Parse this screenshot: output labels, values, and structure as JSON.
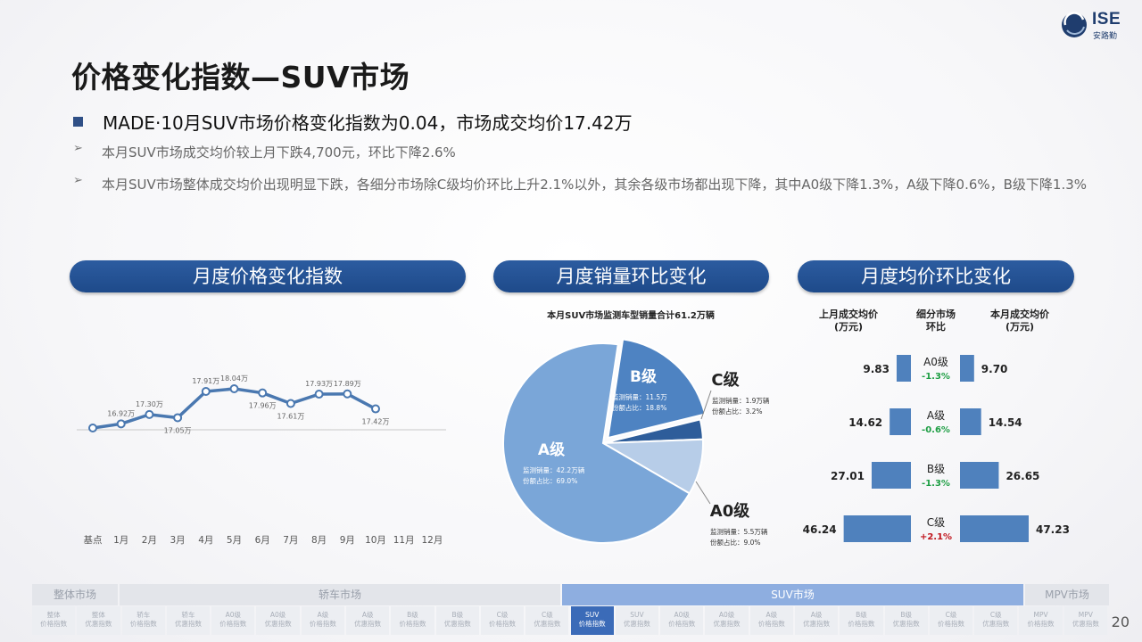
{
  "logo": {
    "text": "ISE",
    "subtext": "安路勤"
  },
  "title": "价格变化指数—SUV市场",
  "bullet": "MADE·10月SUV市场价格变化指数为0.04，市场成交均价17.42万",
  "sub1": "本月SUV市场成交均价较上月下跌4,700元，环比下降2.6%",
  "sub2": "本月SUV市场整体成交均价出现明显下跌，各细分市场除C级均价环比上升2.1%以外，其余各级市场都出现下降，其中A0级下降1.3%，A级下降0.6%，B级下降1.3%",
  "panels": {
    "p1": "月度价格变化指数",
    "p2": "月度销量环比变化",
    "p3": "月度均价环比变化"
  },
  "chart_data": [
    {
      "type": "line",
      "categories": [
        "基点",
        "1月",
        "2月",
        "3月",
        "4月",
        "5月",
        "6月",
        "7月",
        "8月",
        "9月",
        "10月",
        "11月",
        "12月"
      ],
      "values": [
        16.3,
        16.47,
        16.85,
        16.72,
        17.79,
        17.9,
        17.73,
        17.3,
        17.68,
        17.69,
        17.08,
        null,
        null
      ],
      "data_labels": [
        "",
        "16.92万",
        "17.30万",
        "17.05万",
        "17.91万",
        "18.04万",
        "17.96万",
        "17.61万",
        "17.93万",
        "17.89万",
        "17.42万",
        "",
        ""
      ],
      "color": "#4a78b0"
    },
    {
      "type": "pie",
      "title": "本月SUV市场监测车型销量合计61.2万辆",
      "slices": [
        {
          "name": "A级",
          "sales": "监测销量：42.2万辆",
          "share_text": "份额占比：69.0%",
          "value": 69.0,
          "color": "#7aa6d8"
        },
        {
          "name": "B级",
          "sales": "监测销量：11.5万",
          "share_text": "份额占比：18.8%",
          "value": 18.8,
          "color": "#4e83c2"
        },
        {
          "name": "C级",
          "sales": "监测销量：1.9万辆",
          "share_text": "份额占比：3.2%",
          "value": 3.2,
          "color": "#2e5d9a"
        },
        {
          "name": "A0级",
          "sales": "监测销量：5.5万辆",
          "share_text": "份额占比：9.0%",
          "value": 9.0,
          "color": "#b7cde8"
        }
      ]
    },
    {
      "type": "bar",
      "headers": {
        "left": "上月成交均价\n(万元)",
        "mid": "细分市场\n环比",
        "right": "本月成交均价\n(万元)"
      },
      "rows": [
        {
          "segment": "A0级",
          "change": "-1.3%",
          "last": 9.83,
          "current": 9.7,
          "last_label": "9.83",
          "current_label": "9.70",
          "change_color": "#1e9e44"
        },
        {
          "segment": "A级",
          "change": "-0.6%",
          "last": 14.62,
          "current": 14.54,
          "last_label": "14.62",
          "current_label": "14.54",
          "change_color": "#1e9e44"
        },
        {
          "segment": "B级",
          "change": "-1.3%",
          "last": 27.01,
          "current": 26.65,
          "last_label": "27.01",
          "current_label": "26.65",
          "change_color": "#1e9e44"
        },
        {
          "segment": "C级",
          "change": "+2.1%",
          "last": 46.24,
          "current": 47.23,
          "last_label": "46.24",
          "current_label": "47.23",
          "change_color": "#c0141c"
        }
      ],
      "bar_color": "#4f81bd"
    }
  ],
  "nav": {
    "categories": [
      {
        "label": "整体市场",
        "active": false
      },
      {
        "label": "轿车市场",
        "active": false
      },
      {
        "label": "SUV市场",
        "active": true
      },
      {
        "label": "MPV市场",
        "active": false
      }
    ],
    "items": [
      {
        "a": "整体",
        "b": "价格指数"
      },
      {
        "a": "整体",
        "b": "优惠指数"
      },
      {
        "a": "轿车",
        "b": "价格指数"
      },
      {
        "a": "轿车",
        "b": "优惠指数"
      },
      {
        "a": "A0级",
        "b": "价格指数"
      },
      {
        "a": "A0级",
        "b": "优惠指数"
      },
      {
        "a": "A级",
        "b": "价格指数"
      },
      {
        "a": "A级",
        "b": "优惠指数"
      },
      {
        "a": "B级",
        "b": "价格指数"
      },
      {
        "a": "B级",
        "b": "优惠指数"
      },
      {
        "a": "C级",
        "b": "价格指数"
      },
      {
        "a": "C级",
        "b": "优惠指数"
      },
      {
        "a": "SUV",
        "b": "价格指数",
        "active": true
      },
      {
        "a": "SUV",
        "b": "优惠指数"
      },
      {
        "a": "A0级",
        "b": "价格指数"
      },
      {
        "a": "A0级",
        "b": "优惠指数"
      },
      {
        "a": "A级",
        "b": "价格指数"
      },
      {
        "a": "A级",
        "b": "优惠指数"
      },
      {
        "a": "B级",
        "b": "价格指数"
      },
      {
        "a": "B级",
        "b": "优惠指数"
      },
      {
        "a": "C级",
        "b": "价格指数"
      },
      {
        "a": "C级",
        "b": "优惠指数"
      },
      {
        "a": "MPV",
        "b": "价格指数"
      },
      {
        "a": "MPV",
        "b": "优惠指数"
      }
    ]
  },
  "page_number": "20"
}
